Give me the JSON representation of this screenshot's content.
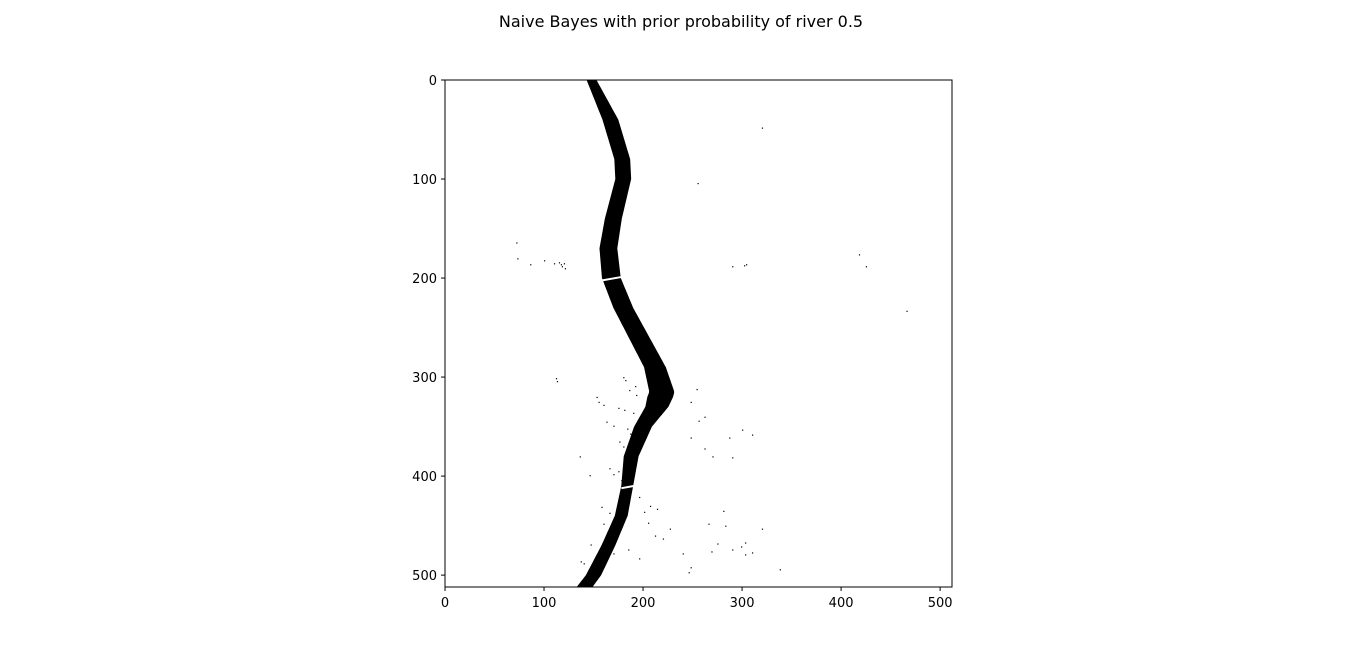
{
  "chart_data": {
    "type": "heatmap",
    "title": "Naive Bayes with prior probability of river 0.5",
    "xlabel": "",
    "ylabel": "",
    "xlim": [
      0,
      512
    ],
    "ylim": [
      512,
      0
    ],
    "y_inverted": true,
    "grid": false,
    "legend": "none",
    "colormap": {
      "river": "#000000",
      "background": "#ffffff"
    },
    "x_ticks": [
      0,
      100,
      200,
      300,
      400,
      500
    ],
    "y_ticks": [
      0,
      100,
      200,
      300,
      400,
      500
    ],
    "river_centerline": [
      {
        "row": 0,
        "col": 148
      },
      {
        "row": 40,
        "col": 167
      },
      {
        "row": 80,
        "col": 179
      },
      {
        "row": 100,
        "col": 180
      },
      {
        "row": 140,
        "col": 170
      },
      {
        "row": 170,
        "col": 165
      },
      {
        "row": 200,
        "col": 168
      },
      {
        "row": 230,
        "col": 180
      },
      {
        "row": 260,
        "col": 196
      },
      {
        "row": 290,
        "col": 212
      },
      {
        "row": 315,
        "col": 219
      },
      {
        "row": 330,
        "col": 214
      },
      {
        "row": 350,
        "col": 200
      },
      {
        "row": 380,
        "col": 188
      },
      {
        "row": 410,
        "col": 184
      },
      {
        "row": 440,
        "col": 178
      },
      {
        "row": 470,
        "col": 165
      },
      {
        "row": 500,
        "col": 150
      },
      {
        "row": 512,
        "col": 141
      }
    ],
    "river_halfwidth": [
      {
        "row": 0,
        "w": 5
      },
      {
        "row": 40,
        "w": 8
      },
      {
        "row": 100,
        "w": 8
      },
      {
        "row": 170,
        "w": 9
      },
      {
        "row": 230,
        "w": 10
      },
      {
        "row": 290,
        "w": 11
      },
      {
        "row": 320,
        "w": 13
      },
      {
        "row": 350,
        "w": 9
      },
      {
        "row": 410,
        "w": 6
      },
      {
        "row": 470,
        "w": 7
      },
      {
        "row": 512,
        "w": 8
      }
    ],
    "gaps": [
      {
        "row": 201,
        "col_from": 155,
        "col_to": 178
      },
      {
        "row": 411,
        "col_from": 178,
        "col_to": 192
      }
    ],
    "noise_pixels": [
      [
        320,
        48
      ],
      [
        255,
        104
      ],
      [
        72,
        164
      ],
      [
        73,
        180
      ],
      [
        100,
        182
      ],
      [
        110,
        185
      ],
      [
        115,
        184
      ],
      [
        117,
        186
      ],
      [
        118,
        188
      ],
      [
        120,
        185
      ],
      [
        121,
        190
      ],
      [
        86,
        186
      ],
      [
        290,
        188
      ],
      [
        302,
        187
      ],
      [
        304,
        186
      ],
      [
        418,
        176
      ],
      [
        425,
        188
      ],
      [
        466,
        233
      ],
      [
        112,
        301
      ],
      [
        113,
        304
      ],
      [
        182,
        303
      ],
      [
        192,
        309
      ],
      [
        205,
        304
      ],
      [
        180,
        300
      ],
      [
        186,
        313
      ],
      [
        193,
        318
      ],
      [
        153,
        320
      ],
      [
        155,
        325
      ],
      [
        160,
        328
      ],
      [
        175,
        331
      ],
      [
        181,
        333
      ],
      [
        190,
        336
      ],
      [
        163,
        345
      ],
      [
        170,
        349
      ],
      [
        184,
        352
      ],
      [
        197,
        342
      ],
      [
        187,
        357
      ],
      [
        176,
        365
      ],
      [
        180,
        370
      ],
      [
        187,
        381
      ],
      [
        254,
        312
      ],
      [
        262,
        340
      ],
      [
        256,
        344
      ],
      [
        248,
        325
      ],
      [
        248,
        361
      ],
      [
        300,
        353
      ],
      [
        310,
        358
      ],
      [
        287,
        361
      ],
      [
        262,
        372
      ],
      [
        270,
        380
      ],
      [
        290,
        381
      ],
      [
        136,
        380
      ],
      [
        146,
        399
      ],
      [
        166,
        392
      ],
      [
        175,
        395
      ],
      [
        170,
        398
      ],
      [
        178,
        404
      ],
      [
        176,
        421
      ],
      [
        196,
        421
      ],
      [
        207,
        430
      ],
      [
        201,
        436
      ],
      [
        205,
        447
      ],
      [
        214,
        433
      ],
      [
        220,
        463
      ],
      [
        227,
        453
      ],
      [
        212,
        460
      ],
      [
        166,
        437
      ],
      [
        158,
        431
      ],
      [
        160,
        448
      ],
      [
        147,
        469
      ],
      [
        185,
        474
      ],
      [
        170,
        478
      ],
      [
        196,
        483
      ],
      [
        240,
        478
      ],
      [
        248,
        492
      ],
      [
        246,
        497
      ],
      [
        266,
        448
      ],
      [
        281,
        435
      ],
      [
        283,
        450
      ],
      [
        275,
        468
      ],
      [
        269,
        476
      ],
      [
        290,
        474
      ],
      [
        303,
        467
      ],
      [
        299,
        471
      ],
      [
        310,
        477
      ],
      [
        303,
        479
      ],
      [
        320,
        453
      ],
      [
        338,
        494
      ],
      [
        137,
        486
      ],
      [
        140,
        488
      ]
    ]
  }
}
